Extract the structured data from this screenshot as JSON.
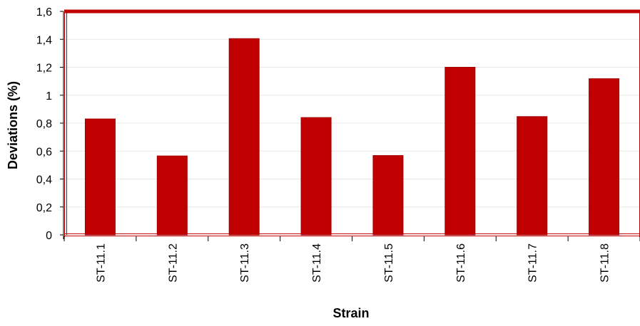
{
  "chart_data": {
    "type": "bar",
    "title": "",
    "xlabel": "Strain",
    "ylabel": "Deviations (%)",
    "categories": [
      "ST-11.1",
      "ST-11.2",
      "ST-11.3",
      "ST-11.4",
      "ST-11.5",
      "ST-11.6",
      "ST-11.7",
      "ST-11.8"
    ],
    "values": [
      0.83,
      0.565,
      1.405,
      0.84,
      0.568,
      1.2,
      0.847,
      1.118
    ],
    "ylim": [
      0,
      1.6
    ],
    "yticks": [
      0,
      0.2,
      0.4,
      0.6,
      0.8,
      1,
      1.2,
      1.4,
      1.6
    ],
    "ytick_labels": [
      "0",
      "0,2",
      "0,4",
      "0,6",
      "0,8",
      "1",
      "1,2",
      "1,4",
      "1,6"
    ],
    "grid": true,
    "legend": "none",
    "colors": {
      "bar": "#c00000",
      "bar_edge": "#a00000",
      "frame": "#c00000",
      "grid": "#e8e8e8"
    }
  }
}
